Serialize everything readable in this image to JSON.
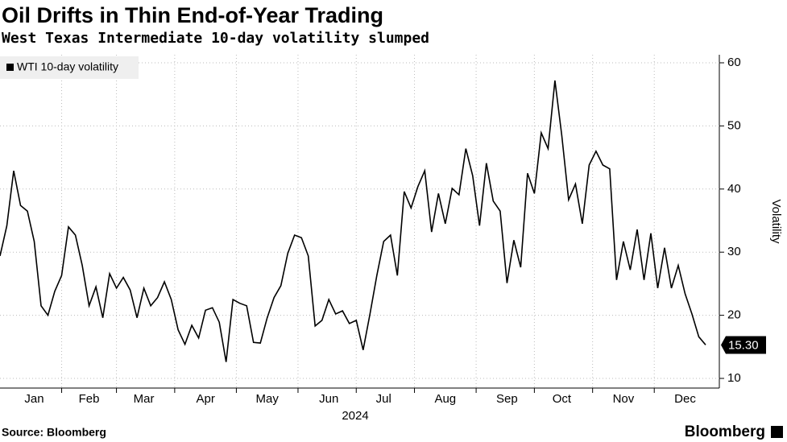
{
  "chart_data": {
    "type": "line",
    "title": "Oil Drifts in Thin End-of-Year Trading",
    "subtitle": "West Texas Intermediate 10-day volatility slumped",
    "xlabel": "2024",
    "ylabel": "Volatility",
    "source": "Source: Bloomberg",
    "brand": "Bloomberg",
    "legend": "top-left",
    "grid": true,
    "ylim": [
      10,
      60
    ],
    "yticks": [
      10,
      20,
      30,
      40,
      50,
      60
    ],
    "categories": [
      null,
      null,
      null,
      null,
      null,
      "Jan",
      null,
      null,
      null,
      null,
      null,
      null,
      null,
      "Feb",
      null,
      null,
      null,
      null,
      null,
      null,
      null,
      "Mar",
      null,
      null,
      null,
      null,
      null,
      null,
      null,
      null,
      "Apr",
      null,
      null,
      null,
      null,
      null,
      null,
      null,
      null,
      "May",
      null,
      null,
      null,
      null,
      null,
      null,
      null,
      null,
      "Jun",
      null,
      null,
      null,
      null,
      null,
      null,
      null,
      "Jul",
      null,
      null,
      null,
      null,
      null,
      null,
      null,
      null,
      "Aug",
      null,
      null,
      null,
      null,
      null,
      null,
      null,
      null,
      "Sep",
      null,
      null,
      null,
      null,
      null,
      null,
      null,
      "Oct",
      null,
      null,
      null,
      null,
      null,
      null,
      null,
      null,
      "Nov",
      null,
      null,
      null,
      null,
      null,
      null,
      null,
      null,
      "Dec",
      null,
      null,
      null
    ],
    "series": [
      {
        "name": "WTI 10-day volatility",
        "color": "#000000",
        "values": [
          29.4,
          34.2,
          42.9,
          37.4,
          36.5,
          31.7,
          21.5,
          20,
          23.8,
          26.3,
          34,
          32.7,
          27.9,
          21.5,
          24.5,
          19.6,
          26.6,
          24.3,
          26,
          24,
          19.6,
          24.3,
          21.5,
          22.8,
          25.3,
          22.5,
          17.7,
          15.4,
          18.4,
          16.4,
          20.8,
          21.2,
          18.9,
          12.6,
          22.5,
          21.9,
          21.5,
          15.7,
          15.6,
          19.6,
          22.8,
          24.7,
          29.8,
          32.7,
          32.3,
          29.4,
          18.3,
          19.2,
          22.5,
          20.2,
          20.7,
          18.7,
          19.2,
          14.5,
          20.2,
          26.3,
          31.7,
          32.7,
          26.3,
          39.6,
          37,
          40.4,
          42.9,
          33.2,
          39.3,
          34.5,
          40.1,
          39.1,
          46.4,
          42.1,
          34.2,
          44.1,
          38.1,
          36.5,
          25.1,
          31.9,
          27.6,
          42.5,
          39.3,
          48.9,
          46.4,
          57.2,
          48.5,
          38.3,
          40.8,
          34.5,
          43.8,
          46,
          43.8,
          43.2,
          25.6,
          31.7,
          27.2,
          33.6,
          25.6,
          33,
          24.3,
          30.7,
          24.3,
          27.9,
          23.4,
          20.2,
          16.6,
          15.3
        ],
        "value_labels": [
          null,
          null,
          null,
          null,
          null,
          null,
          null,
          null,
          null,
          null,
          null,
          null,
          null,
          null,
          null,
          null,
          null,
          null,
          null,
          null,
          null,
          null,
          null,
          null,
          null,
          null,
          null,
          null,
          null,
          null,
          null,
          null,
          null,
          null,
          null,
          null,
          null,
          null,
          null,
          null,
          null,
          null,
          null,
          null,
          null,
          null,
          null,
          null,
          null,
          null,
          null,
          null,
          null,
          null,
          null,
          null,
          null,
          null,
          null,
          null,
          null,
          null,
          null,
          null,
          null,
          null,
          null,
          null,
          null,
          null,
          null,
          null,
          null,
          null,
          null,
          null,
          null,
          null,
          null,
          null,
          null,
          null,
          null,
          null,
          null,
          null,
          null,
          null,
          null,
          null,
          null,
          null,
          null,
          null,
          null,
          null,
          null,
          null,
          null,
          null,
          null,
          null,
          null,
          "15.30"
        ]
      }
    ]
  }
}
